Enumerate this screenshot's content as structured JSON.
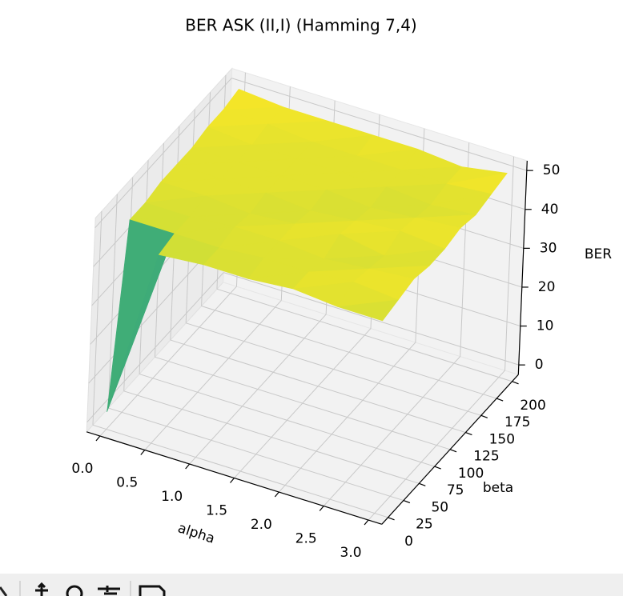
{
  "chart_data": {
    "type": "surface",
    "title": "BER ASK (II,I) (Hamming 7,4)",
    "x_label": "alpha",
    "y_label": "beta",
    "z_label": "BER",
    "x": [
      0,
      0.5,
      1.0,
      1.5,
      2.0,
      2.5,
      3.0
    ],
    "y": [
      0,
      25,
      50,
      75,
      100,
      125,
      150,
      175,
      200
    ],
    "values": [
      [
        2,
        46,
        47,
        47,
        48,
        47,
        47
      ],
      [
        47,
        47,
        47,
        48,
        48,
        49,
        48
      ],
      [
        47,
        47,
        48,
        48,
        47,
        48,
        49
      ],
      [
        48,
        48,
        47,
        48,
        49,
        47,
        48
      ],
      [
        48,
        48,
        48,
        47,
        48,
        49,
        48
      ],
      [
        48,
        48,
        48,
        48,
        47,
        48,
        49
      ],
      [
        49,
        48,
        48,
        48,
        48,
        47,
        48
      ],
      [
        49,
        49,
        48,
        48,
        48,
        48,
        49
      ],
      [
        50,
        49,
        49,
        49,
        49,
        48,
        50
      ]
    ],
    "colormap": "viridis",
    "xlim": [
      -0.15,
      3.15
    ],
    "ylim": [
      -10,
      210
    ],
    "zlim": [
      -2.5,
      52.5
    ],
    "xticks": [
      {
        "value": 0,
        "label": "0.0"
      },
      {
        "value": 0.5,
        "label": "0.5"
      },
      {
        "value": 1,
        "label": "1.0"
      },
      {
        "value": 1.5,
        "label": "1.5"
      },
      {
        "value": 2,
        "label": "2.0"
      },
      {
        "value": 2.5,
        "label": "2.5"
      },
      {
        "value": 3,
        "label": "3.0"
      }
    ],
    "yticks": [
      0,
      25,
      50,
      75,
      100,
      125,
      150,
      175,
      200
    ],
    "zticks": [
      0,
      10,
      20,
      30,
      40,
      50
    ],
    "grid": true
  }
}
